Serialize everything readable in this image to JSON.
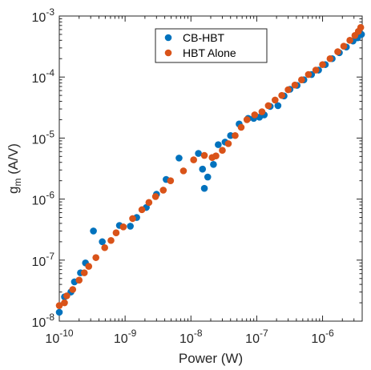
{
  "chart_data": {
    "type": "scatter",
    "xlabel": "Power (W)",
    "ylabel": {
      "base": "g",
      "sub": "m",
      "unit": " (A/V)"
    },
    "xscale": "log",
    "yscale": "log",
    "xlim": [
      1e-10,
      4e-06
    ],
    "ylim": [
      1e-08,
      0.001
    ],
    "x_ticks": [
      {
        "base": "10",
        "exp": "-10",
        "value": 1e-10
      },
      {
        "base": "10",
        "exp": "-9",
        "value": 1e-09
      },
      {
        "base": "10",
        "exp": "-8",
        "value": 1e-08
      },
      {
        "base": "10",
        "exp": "-7",
        "value": 1e-07
      },
      {
        "base": "10",
        "exp": "-6",
        "value": 1e-06
      }
    ],
    "y_ticks": [
      {
        "base": "10",
        "exp": "-8",
        "value": 1e-08
      },
      {
        "base": "10",
        "exp": "-7",
        "value": 1e-07
      },
      {
        "base": "10",
        "exp": "-6",
        "value": 1e-06
      },
      {
        "base": "10",
        "exp": "-5",
        "value": 1e-05
      },
      {
        "base": "10",
        "exp": "-4",
        "value": 0.0001
      },
      {
        "base": "10",
        "exp": "-3",
        "value": 0.001
      }
    ],
    "grid": false,
    "legend_position": "top-right",
    "series": [
      {
        "name": "CB-HBT",
        "color": "#0072BD",
        "points": [
          [
            1e-10,
            1.4e-08
          ],
          [
            1.2e-10,
            2.5e-08
          ],
          [
            1.5e-10,
            3e-08
          ],
          [
            1.7e-10,
            4.4e-08
          ],
          [
            2.1e-10,
            6.2e-08
          ],
          [
            2.5e-10,
            9e-08
          ],
          [
            3.3e-10,
            3e-07
          ],
          [
            4.5e-10,
            2e-07
          ],
          [
            8.2e-10,
            3.7e-07
          ],
          [
            1.2e-09,
            3.6e-07
          ],
          [
            1.5e-09,
            5e-07
          ],
          [
            2.1e-09,
            7.3e-07
          ],
          [
            3e-09,
            1.2e-06
          ],
          [
            4.2e-09,
            2.1e-06
          ],
          [
            6.6e-09,
            4.7e-06
          ],
          [
            1.3e-08,
            5.6e-06
          ],
          [
            1.5e-08,
            3.1e-06
          ],
          [
            1.6e-08,
            1.5e-06
          ],
          [
            1.8e-08,
            2.3e-06
          ],
          [
            2.2e-08,
            3.7e-06
          ],
          [
            2.6e-08,
            7.8e-06
          ],
          [
            3.3e-08,
            8.6e-06
          ],
          [
            4e-08,
            1.1e-05
          ],
          [
            5.4e-08,
            1.7e-05
          ],
          [
            7.4e-08,
            2.1e-05
          ],
          [
            9e-08,
            2.1e-05
          ],
          [
            1.1e-07,
            2.2e-05
          ],
          [
            1.3e-07,
            2.4e-05
          ],
          [
            1.6e-07,
            3.3e-05
          ],
          [
            2.1e-07,
            3.4e-05
          ],
          [
            2.6e-07,
            4.9e-05
          ],
          [
            3.2e-07,
            6.3e-05
          ],
          [
            4.1e-07,
            7.3e-05
          ],
          [
            5.2e-07,
            9e-05
          ],
          [
            6.8e-07,
            0.00011
          ],
          [
            8.7e-07,
            0.00013
          ],
          [
            1.1e-06,
            0.00016
          ],
          [
            1.4e-06,
            0.0002
          ],
          [
            1.8e-06,
            0.00025
          ],
          [
            2.3e-06,
            0.00031
          ],
          [
            2.9e-06,
            0.00039
          ],
          [
            3.4e-06,
            0.00044
          ],
          [
            3.9e-06,
            0.0005
          ]
        ]
      },
      {
        "name": "HBT Alone",
        "color": "#D95319",
        "points": [
          [
            1e-10,
            1.8e-08
          ],
          [
            1.2e-10,
            2e-08
          ],
          [
            1.3e-10,
            2.6e-08
          ],
          [
            1.6e-10,
            3.3e-08
          ],
          [
            2e-10,
            4.7e-08
          ],
          [
            2.4e-10,
            6.2e-08
          ],
          [
            2.8e-10,
            7.9e-08
          ],
          [
            3.6e-10,
            1.1e-07
          ],
          [
            4.9e-10,
            1.6e-07
          ],
          [
            6.1e-10,
            2.1e-07
          ],
          [
            7.3e-10,
            2.8e-07
          ],
          [
            9.4e-10,
            3.5e-07
          ],
          [
            1.3e-09,
            4.8e-07
          ],
          [
            1.8e-09,
            6.7e-07
          ],
          [
            2.3e-09,
            8.8e-07
          ],
          [
            2.9e-09,
            1.1e-06
          ],
          [
            3.8e-09,
            1.4e-06
          ],
          [
            4.9e-09,
            2e-06
          ],
          [
            7.7e-09,
            2.9e-06
          ],
          [
            1.1e-08,
            4.4e-06
          ],
          [
            1.6e-08,
            5.2e-06
          ],
          [
            2.1e-08,
            4.8e-06
          ],
          [
            2.4e-08,
            5.1e-06
          ],
          [
            3e-08,
            6.3e-06
          ],
          [
            3.7e-08,
            8.1e-06
          ],
          [
            4.7e-08,
            1.1e-05
          ],
          [
            5.8e-08,
            1.5e-05
          ],
          [
            7.1e-08,
            2e-05
          ],
          [
            9.3e-08,
            2.4e-05
          ],
          [
            1.2e-07,
            2.7e-05
          ],
          [
            1.5e-07,
            3.4e-05
          ],
          [
            1.9e-07,
            4.2e-05
          ],
          [
            2.4e-07,
            5e-05
          ],
          [
            3e-07,
            6.2e-05
          ],
          [
            3.8e-07,
            7.4e-05
          ],
          [
            4.8e-07,
            9e-05
          ],
          [
            6.1e-07,
            0.00011
          ],
          [
            7.9e-07,
            0.00013
          ],
          [
            1e-06,
            0.00016
          ],
          [
            1.3e-06,
            0.0002
          ],
          [
            1.7e-06,
            0.00026
          ],
          [
            2.1e-06,
            0.00032
          ],
          [
            2.6e-06,
            0.0004
          ],
          [
            3.1e-06,
            0.00048
          ],
          [
            3.5e-06,
            0.00056
          ],
          [
            3.8e-06,
            0.00065
          ]
        ]
      }
    ]
  }
}
